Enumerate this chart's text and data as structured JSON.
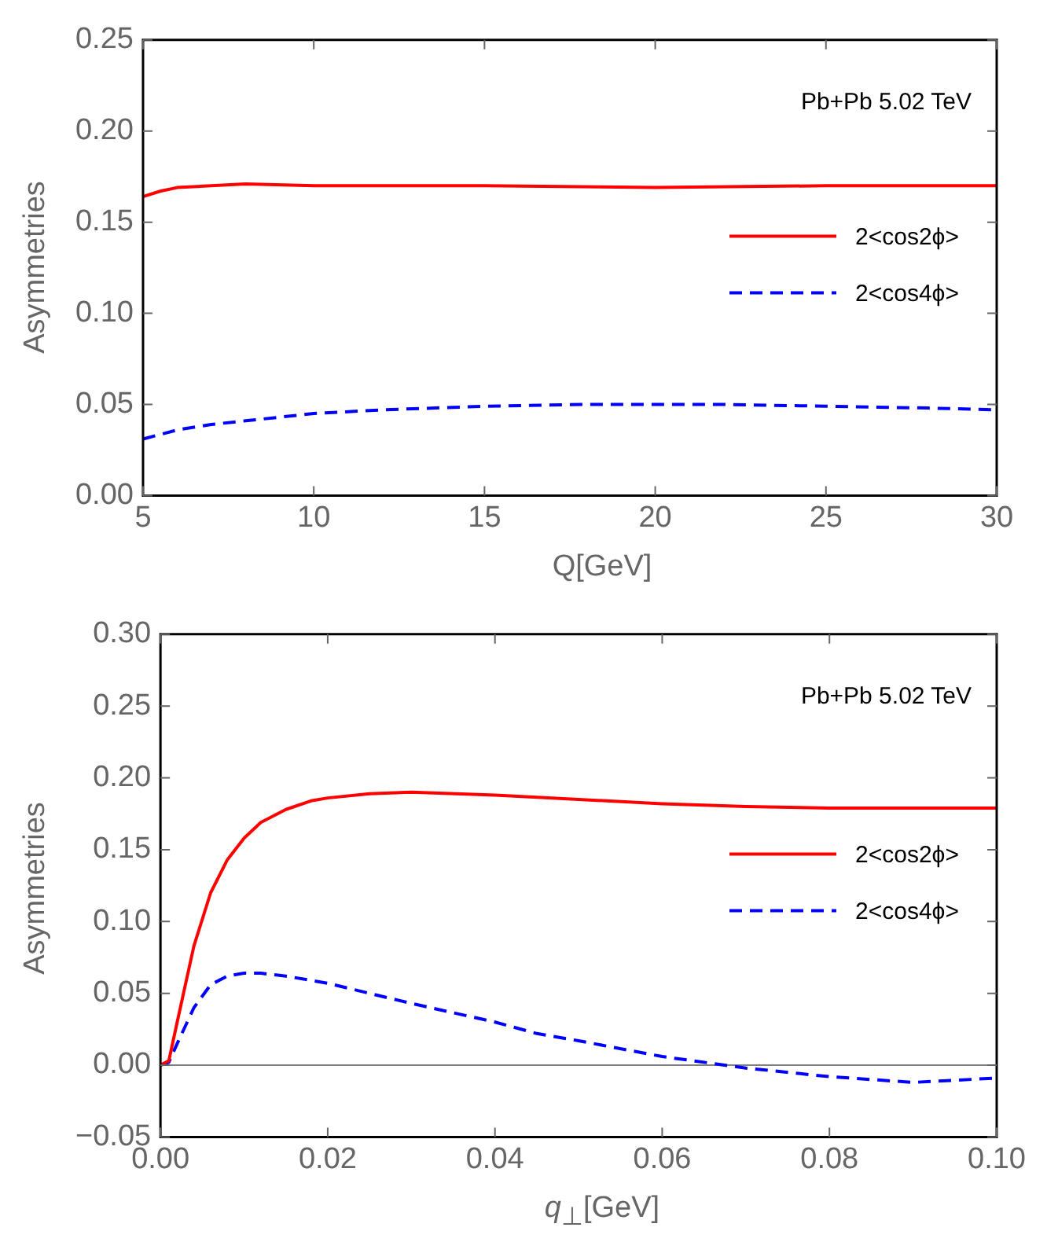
{
  "chart_data": [
    {
      "type": "line",
      "xlabel": "Q[GeV]",
      "ylabel": "Asymmetries",
      "annotations": [
        "Pb+Pb 5.02 TeV"
      ],
      "xlim": [
        5,
        30
      ],
      "xticks": [
        5,
        10,
        15,
        20,
        25,
        30
      ],
      "ylim": [
        0,
        0.25
      ],
      "yticks": [
        {
          "value": 0,
          "label": "0.00"
        },
        0.05,
        {
          "value": 0.1,
          "label": "0.10"
        },
        0.15,
        {
          "value": 0.2,
          "label": "0.20"
        },
        0.25
      ],
      "grid": false,
      "legend": "right",
      "marker": "none",
      "series": [
        {
          "name": "2<cos2ϕ>",
          "color": "#ff0000",
          "line_style": "solid",
          "x": [
            5,
            5.5,
            6,
            7,
            8,
            10,
            12,
            15,
            20,
            25,
            30
          ],
          "values": [
            0.164,
            0.167,
            0.169,
            0.17,
            0.171,
            0.17,
            0.17,
            0.17,
            0.169,
            0.17,
            0.17
          ]
        },
        {
          "name": "2<cos4ϕ>",
          "color": "#0000ff",
          "line_style": "dashed",
          "x": [
            5,
            6,
            7,
            8,
            10,
            12,
            15,
            18,
            20,
            22,
            25,
            28,
            30
          ],
          "values": [
            0.031,
            0.036,
            0.039,
            0.041,
            0.045,
            0.047,
            0.049,
            0.05,
            0.05,
            0.05,
            0.049,
            0.048,
            0.047
          ]
        }
      ]
    },
    {
      "type": "line",
      "xlabel": "q$_{⊥}$[GeV]",
      "ylabel": "Asymmetries",
      "annotations": [
        "Pb+Pb 5.02 TeV"
      ],
      "xlim": [
        0,
        0.1
      ],
      "xticks": [
        {
          "value": 0,
          "label": "0.00"
        },
        0.02,
        0.04,
        0.06,
        0.08,
        {
          "value": 0.1,
          "label": "0.10"
        }
      ],
      "ylim": [
        -0.05,
        0.3
      ],
      "yticks": [
        {
          "value": -0.05,
          "label": "−0.05"
        },
        {
          "value": 0,
          "label": "0.00"
        },
        0.05,
        {
          "value": 0.1,
          "label": "0.10"
        },
        0.15,
        {
          "value": 0.2,
          "label": "0.20"
        },
        0.25,
        {
          "value": 0.3,
          "label": "0.30"
        }
      ],
      "grid": false,
      "legend": "right",
      "marker": "none",
      "ref_lines": [
        {
          "axis": "y",
          "value": 0,
          "color": "#808080"
        }
      ],
      "series": [
        {
          "name": "2<cos2ϕ>",
          "color": "#ff0000",
          "line_style": "solid",
          "x": [
            0,
            0.001,
            0.002,
            0.004,
            0.006,
            0.008,
            0.01,
            0.012,
            0.015,
            0.018,
            0.02,
            0.025,
            0.03,
            0.04,
            0.05,
            0.06,
            0.07,
            0.08,
            0.1
          ],
          "values": [
            0,
            0.003,
            0.03,
            0.083,
            0.12,
            0.143,
            0.158,
            0.169,
            0.178,
            0.184,
            0.186,
            0.189,
            0.19,
            0.188,
            0.185,
            0.182,
            0.18,
            0.179,
            0.179
          ]
        },
        {
          "name": "2<cos4ϕ>",
          "color": "#0000ff",
          "line_style": "dashed",
          "x": [
            0,
            0.001,
            0.002,
            0.004,
            0.006,
            0.008,
            0.01,
            0.012,
            0.015,
            0.02,
            0.03,
            0.04,
            0.045,
            0.05,
            0.06,
            0.07,
            0.08,
            0.09,
            0.1
          ],
          "values": [
            0,
            0.002,
            0.015,
            0.04,
            0.056,
            0.062,
            0.064,
            0.064,
            0.062,
            0.057,
            0.043,
            0.03,
            0.022,
            0.017,
            0.006,
            -0.002,
            -0.008,
            -0.012,
            -0.009
          ]
        }
      ]
    }
  ]
}
